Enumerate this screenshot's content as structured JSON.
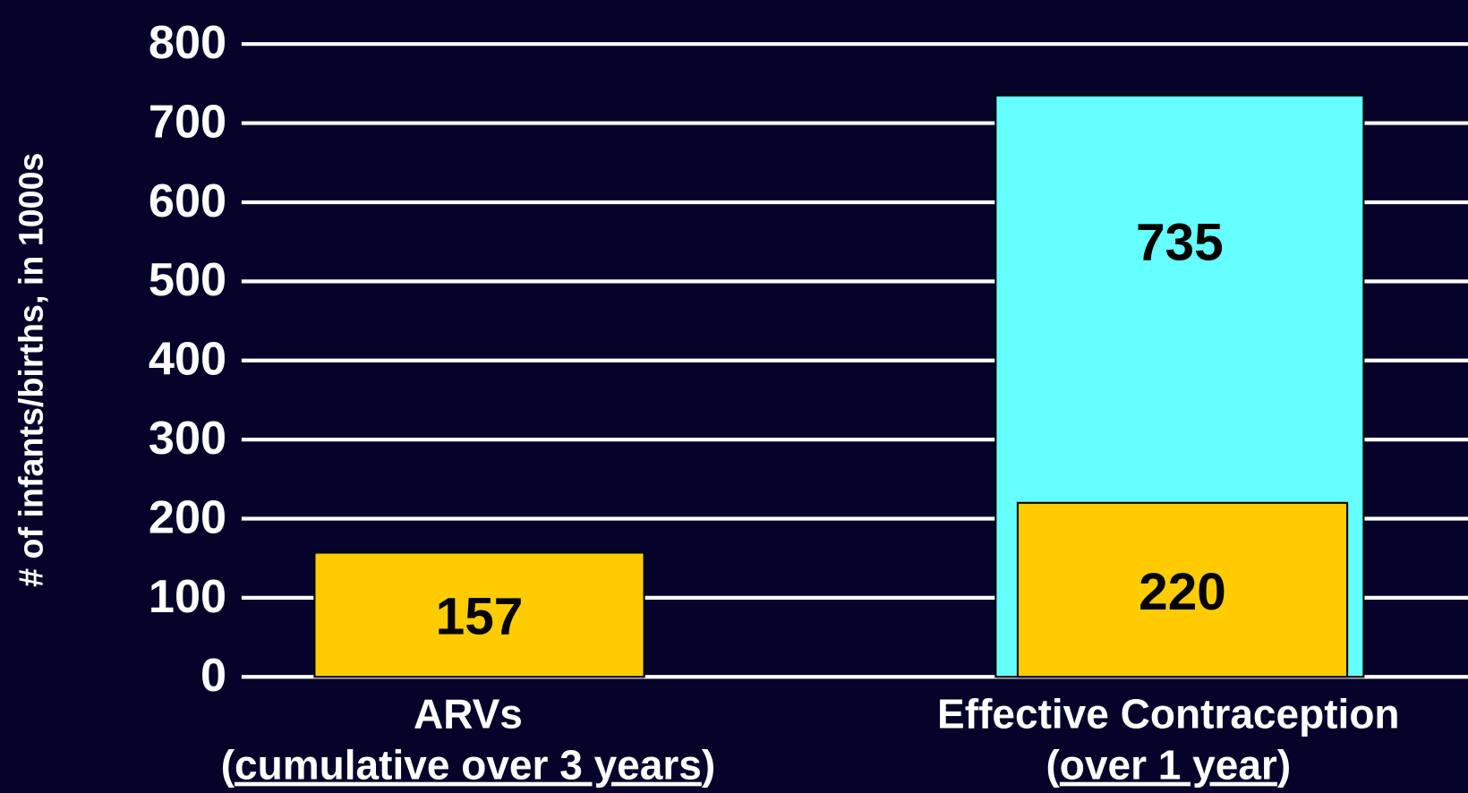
{
  "chart_data": {
    "type": "bar",
    "y_label": "# of infants/births, in 1000s",
    "categories": [
      "ARVs",
      "Effective Contraception"
    ],
    "category_notes": [
      [
        "(",
        "cumulative over 3 years",
        ")"
      ],
      [
        "(",
        "over 1 year",
        ")"
      ]
    ],
    "series": [
      {
        "color": "#66ffff",
        "values": [
          null,
          735
        ]
      },
      {
        "color": "#ffcc00",
        "values": [
          157,
          220
        ]
      }
    ],
    "ylim": [
      0,
      800
    ],
    "yticks": [
      0,
      100,
      200,
      300,
      400,
      500,
      600,
      700,
      800
    ],
    "grid": true
  }
}
